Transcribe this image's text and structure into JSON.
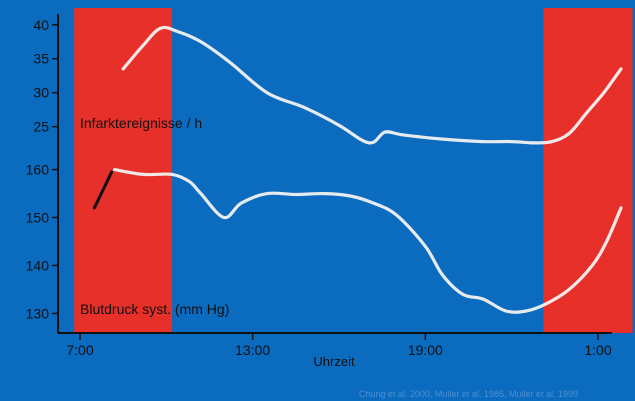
{
  "chart_data": {
    "type": "line",
    "xlabel": "Uhrzeit",
    "x_tick_labels": [
      "7:00",
      "13:00",
      "19:00",
      "1:00"
    ],
    "x_ticks_hours": [
      7,
      13,
      19,
      25
    ],
    "xlim": [
      6.3,
      26.2
    ],
    "source_note": "Chung et al. 2000, Muller et al. 1985, Muller et al. 1999",
    "colors": {
      "background": "#0b6bbf",
      "band": "#e8302a",
      "line": "#f2f2f2",
      "axis": "#111111"
    },
    "bands": [
      {
        "from": 6.8,
        "to": 10.2
      },
      {
        "from": 23.1,
        "to": 26.2
      }
    ],
    "panels": [
      {
        "name": "infarct",
        "label": "Infarktereignisse / h",
        "ylim": [
          22,
          41
        ],
        "y_tick_values": [
          25,
          30,
          35,
          40
        ],
        "y_tick_labels": [
          "25",
          "30",
          "35",
          "40"
        ],
        "series": [
          {
            "name": "Infarktereignisse / h",
            "points": [
              [
                8.5,
                33.5
              ],
              [
                9.2,
                37
              ],
              [
                9.8,
                39.5
              ],
              [
                10.4,
                39
              ],
              [
                11.2,
                37.5
              ],
              [
                12.2,
                34.5
              ],
              [
                13.5,
                30
              ],
              [
                14.8,
                27.8
              ],
              [
                16.0,
                25.2
              ],
              [
                16.8,
                23
              ],
              [
                17.2,
                22.7
              ],
              [
                17.6,
                24.2
              ],
              [
                18.2,
                23.8
              ],
              [
                19.5,
                23.2
              ],
              [
                21.0,
                22.8
              ],
              [
                22.0,
                22.8
              ],
              [
                22.8,
                22.6
              ],
              [
                23.4,
                22.8
              ],
              [
                24.0,
                24
              ],
              [
                24.6,
                27
              ],
              [
                25.2,
                30
              ],
              [
                25.8,
                33.5
              ]
            ]
          }
        ]
      },
      {
        "name": "blood_pressure",
        "label": "Blutdruck syst. (mm Hg)",
        "ylim": [
          128,
          162
        ],
        "y_tick_values": [
          130,
          140,
          150,
          160
        ],
        "y_tick_labels": [
          "130",
          "140",
          "150",
          "160"
        ],
        "series": [
          {
            "name": "Blutdruck syst. (mm Hg)",
            "points": [
              [
                8.2,
                160
              ],
              [
                9.2,
                159
              ],
              [
                10.2,
                159
              ],
              [
                10.8,
                157.5
              ],
              [
                11.2,
                155
              ],
              [
                12.0,
                150
              ],
              [
                12.6,
                153
              ],
              [
                13.5,
                155
              ],
              [
                14.5,
                154.8
              ],
              [
                15.5,
                155
              ],
              [
                16.4,
                154.5
              ],
              [
                17.2,
                153
              ],
              [
                18.0,
                150.5
              ],
              [
                19.0,
                144
              ],
              [
                19.6,
                138
              ],
              [
                20.3,
                134
              ],
              [
                21.0,
                133
              ],
              [
                21.8,
                130.5
              ],
              [
                22.5,
                130.5
              ],
              [
                23.2,
                132
              ],
              [
                24.0,
                135
              ],
              [
                24.8,
                140
              ],
              [
                25.3,
                145
              ],
              [
                25.8,
                152
              ]
            ]
          }
        ],
        "marker_segment": [
          [
            7.5,
            152
          ],
          [
            8.1,
            159.5
          ]
        ]
      }
    ]
  }
}
